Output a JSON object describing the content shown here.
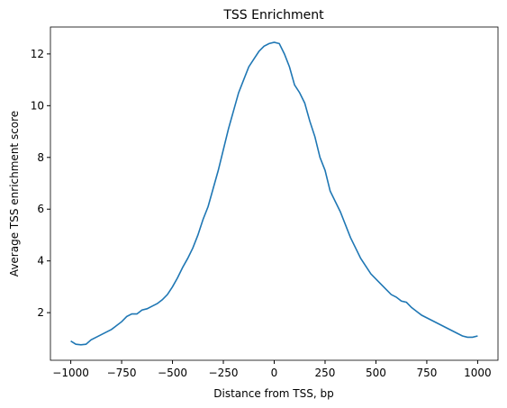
{
  "chart_data": {
    "type": "line",
    "title": "TSS Enrichment",
    "xlabel": "Distance from TSS, bp",
    "ylabel": "Average TSS enrichment score",
    "x": [
      -1000,
      -975,
      -950,
      -925,
      -900,
      -875,
      -850,
      -825,
      -800,
      -775,
      -750,
      -725,
      -700,
      -675,
      -650,
      -625,
      -600,
      -575,
      -550,
      -525,
      -500,
      -475,
      -450,
      -425,
      -400,
      -375,
      -350,
      -325,
      -300,
      -275,
      -250,
      -225,
      -200,
      -175,
      -150,
      -125,
      -100,
      -75,
      -50,
      -25,
      0,
      25,
      50,
      75,
      100,
      125,
      150,
      175,
      200,
      225,
      250,
      275,
      300,
      325,
      350,
      375,
      400,
      425,
      450,
      475,
      500,
      525,
      550,
      575,
      600,
      625,
      650,
      675,
      700,
      725,
      750,
      775,
      800,
      825,
      850,
      875,
      900,
      925,
      950,
      975,
      1000
    ],
    "series": [
      {
        "name": "TSS",
        "color": "#1f77b4",
        "values": [
          0.9,
          0.78,
          0.76,
          0.78,
          0.95,
          1.05,
          1.15,
          1.25,
          1.35,
          1.5,
          1.65,
          1.85,
          1.95,
          1.95,
          2.1,
          2.15,
          2.25,
          2.35,
          2.5,
          2.7,
          3.0,
          3.35,
          3.75,
          4.1,
          4.5,
          5.0,
          5.6,
          6.1,
          6.8,
          7.5,
          8.3,
          9.1,
          9.8,
          10.5,
          11.0,
          11.5,
          11.8,
          12.1,
          12.3,
          12.4,
          12.45,
          12.4,
          12.0,
          11.5,
          10.8,
          10.5,
          10.1,
          9.4,
          8.8,
          8.0,
          7.5,
          6.7,
          6.3,
          5.9,
          5.4,
          4.9,
          4.5,
          4.1,
          3.8,
          3.5,
          3.3,
          3.1,
          2.9,
          2.7,
          2.6,
          2.45,
          2.4,
          2.2,
          2.05,
          1.9,
          1.8,
          1.7,
          1.6,
          1.5,
          1.4,
          1.3,
          1.2,
          1.1,
          1.05,
          1.05,
          1.1
        ]
      }
    ],
    "xlim": [
      -1100,
      1100
    ],
    "ylim": [
      0.16,
      13.04
    ],
    "xticks": [
      {
        "value": -1000,
        "label": "−1000"
      },
      {
        "value": -750,
        "label": "−750"
      },
      {
        "value": -500,
        "label": "−500"
      },
      {
        "value": -250,
        "label": "−250"
      },
      0,
      250,
      500,
      750,
      1000
    ],
    "yticks": [
      2,
      4,
      6,
      8,
      10,
      12
    ]
  }
}
